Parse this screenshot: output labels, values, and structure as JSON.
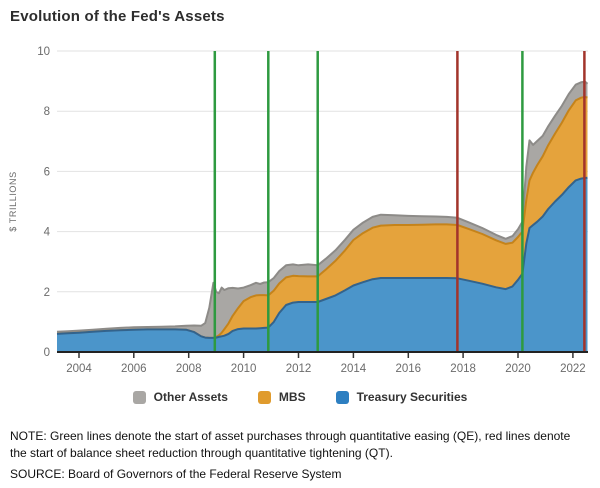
{
  "title": "Evolution of the Fed's Assets",
  "chart_data": {
    "type": "area",
    "stacked": true,
    "title": "Evolution of the Fed's Assets",
    "xlabel": "",
    "ylabel": "$ TRILLIONS",
    "ylim": [
      0,
      10
    ],
    "yticks": [
      0,
      2,
      4,
      6,
      8,
      10
    ],
    "xlim": [
      2003.2,
      2022.55
    ],
    "xticks": [
      2004,
      2006,
      2008,
      2010,
      2012,
      2014,
      2016,
      2018,
      2020,
      2022
    ],
    "grid": "horizontal-only",
    "grid_color": "#e2e2e2",
    "axis_color": "#222222",
    "tick_color": "#333333",
    "tick_label_color": "#6b6b6b",
    "x": [
      2003.2,
      2003.6,
      2004.0,
      2004.5,
      2005.0,
      2005.5,
      2006.0,
      2006.5,
      2007.0,
      2007.5,
      2007.9,
      2008.2,
      2008.45,
      2008.6,
      2008.75,
      2008.9,
      2009.0,
      2009.1,
      2009.2,
      2009.3,
      2009.45,
      2009.6,
      2009.8,
      2010.0,
      2010.25,
      2010.45,
      2010.6,
      2010.75,
      2010.9,
      2011.1,
      2011.3,
      2011.55,
      2011.8,
      2012.0,
      2012.35,
      2012.7,
      2013.0,
      2013.35,
      2013.7,
      2014.0,
      2014.35,
      2014.7,
      2015.0,
      2015.5,
      2016.0,
      2016.5,
      2017.0,
      2017.4,
      2017.79,
      2018.2,
      2018.7,
      2019.2,
      2019.55,
      2019.8,
      2020.0,
      2020.16,
      2020.3,
      2020.42,
      2020.55,
      2020.7,
      2020.9,
      2021.1,
      2021.35,
      2021.6,
      2021.85,
      2022.1,
      2022.3,
      2022.44,
      2022.53
    ],
    "series": [
      {
        "name": "Treasury Securities",
        "color": "#4b95ca",
        "stroke": "#33638c",
        "values": [
          0.6,
          0.62,
          0.64,
          0.67,
          0.7,
          0.72,
          0.74,
          0.75,
          0.75,
          0.75,
          0.74,
          0.66,
          0.52,
          0.48,
          0.47,
          0.47,
          0.48,
          0.5,
          0.52,
          0.54,
          0.6,
          0.7,
          0.76,
          0.78,
          0.78,
          0.78,
          0.79,
          0.8,
          0.81,
          1.0,
          1.3,
          1.56,
          1.64,
          1.66,
          1.66,
          1.66,
          1.76,
          1.88,
          2.05,
          2.21,
          2.32,
          2.42,
          2.46,
          2.46,
          2.46,
          2.46,
          2.46,
          2.46,
          2.45,
          2.37,
          2.27,
          2.15,
          2.09,
          2.18,
          2.4,
          2.6,
          3.6,
          4.12,
          4.22,
          4.33,
          4.5,
          4.75,
          5.0,
          5.22,
          5.48,
          5.7,
          5.76,
          5.78,
          5.79
        ]
      },
      {
        "name": "MBS",
        "color": "#e5a33c",
        "stroke": "#c5831a",
        "values": [
          0,
          0,
          0,
          0,
          0,
          0,
          0,
          0,
          0,
          0,
          0,
          0,
          0,
          0,
          0,
          0,
          0.02,
          0.05,
          0.12,
          0.22,
          0.35,
          0.5,
          0.7,
          0.91,
          1.04,
          1.1,
          1.1,
          1.09,
          1.07,
          1.04,
          0.98,
          0.92,
          0.89,
          0.86,
          0.85,
          0.85,
          0.98,
          1.15,
          1.33,
          1.51,
          1.63,
          1.71,
          1.74,
          1.76,
          1.76,
          1.77,
          1.78,
          1.78,
          1.77,
          1.72,
          1.65,
          1.56,
          1.5,
          1.45,
          1.42,
          1.4,
          1.45,
          1.58,
          1.74,
          1.88,
          2.0,
          2.12,
          2.26,
          2.4,
          2.55,
          2.66,
          2.69,
          2.7,
          2.66
        ]
      },
      {
        "name": "Other Assets",
        "color": "#a9a7a4",
        "stroke": "#8d8b88",
        "values": [
          0.07,
          0.07,
          0.07,
          0.07,
          0.07,
          0.08,
          0.08,
          0.08,
          0.09,
          0.1,
          0.13,
          0.22,
          0.35,
          0.48,
          1.0,
          1.83,
          1.5,
          1.4,
          1.5,
          1.3,
          1.17,
          0.93,
          0.65,
          0.45,
          0.4,
          0.42,
          0.37,
          0.42,
          0.44,
          0.42,
          0.41,
          0.4,
          0.38,
          0.36,
          0.4,
          0.37,
          0.36,
          0.35,
          0.35,
          0.34,
          0.35,
          0.36,
          0.36,
          0.32,
          0.3,
          0.28,
          0.26,
          0.25,
          0.24,
          0.22,
          0.2,
          0.18,
          0.17,
          0.22,
          0.26,
          0.33,
          1.1,
          1.33,
          0.92,
          0.8,
          0.68,
          0.63,
          0.59,
          0.56,
          0.54,
          0.52,
          0.51,
          0.5,
          0.46
        ]
      }
    ],
    "events": [
      {
        "year": 2008.95,
        "type": "QE"
      },
      {
        "year": 2010.9,
        "type": "QE"
      },
      {
        "year": 2012.7,
        "type": "QE"
      },
      {
        "year": 2017.79,
        "type": "QT"
      },
      {
        "year": 2020.16,
        "type": "QE"
      },
      {
        "year": 2022.42,
        "type": "QT"
      }
    ],
    "event_colors": {
      "QE": "#2e9a40",
      "QT": "#a2342b"
    },
    "legend_position": "bottom"
  },
  "legend": {
    "items": [
      {
        "label": "Other Assets",
        "color": "#a9a7a4"
      },
      {
        "label": "MBS",
        "color": "#e09b2d"
      },
      {
        "label": "Treasury Securities",
        "color": "#2d7fc1"
      }
    ]
  },
  "note": "NOTE: Green lines denote the start of asset purchases through quantitative easing (QE), red lines denote the start of balance sheet reduction through quantitative tightening (QT).",
  "source": "SOURCE: Board of Governors of the Federal Reserve System"
}
